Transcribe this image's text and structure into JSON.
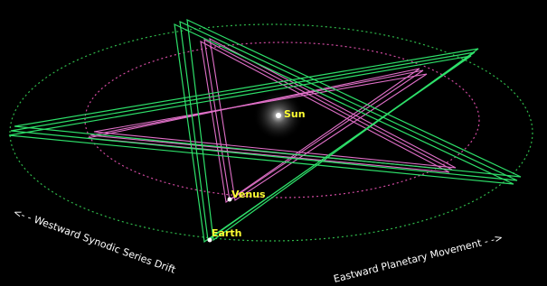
{
  "labels": {
    "sun": "Sun",
    "venus": "Venus",
    "earth": "Earth"
  },
  "captions": {
    "westward": "<- - Westward Synodic Series Drift",
    "eastward": "Eastward Planetary Movement - ->"
  }
}
